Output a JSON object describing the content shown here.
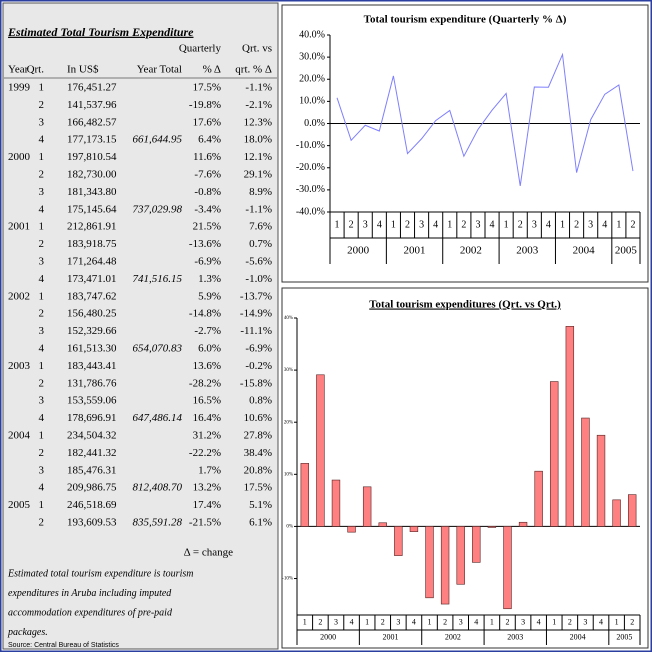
{
  "table": {
    "title": "Estimated Total Tourism Expenditure",
    "header_rows": [
      [
        null,
        null,
        null,
        null,
        "Quarterly",
        "Qrt. vs"
      ],
      [
        "Year",
        "Qrt.",
        "In US$",
        "Year Total",
        "% Δ",
        "qrt. % Δ"
      ]
    ],
    "rows": [
      [
        "1999",
        "1",
        "176,451.27",
        null,
        "17.5%",
        "-1.1%"
      ],
      [
        null,
        "2",
        "141,537.96",
        null,
        "-19.8%",
        "-2.1%"
      ],
      [
        null,
        "3",
        "166,482.57",
        null,
        "17.6%",
        "12.3%"
      ],
      [
        null,
        "4",
        "177,173.15",
        "661,644.95",
        "6.4%",
        "18.0%"
      ],
      [
        "2000",
        "1",
        "197,810.54",
        null,
        "11.6%",
        "12.1%"
      ],
      [
        null,
        "2",
        "182,730.00",
        null,
        "-7.6%",
        "29.1%"
      ],
      [
        null,
        "3",
        "181,343.80",
        null,
        "-0.8%",
        "8.9%"
      ],
      [
        null,
        "4",
        "175,145.64",
        "737,029.98",
        "-3.4%",
        "-1.1%"
      ],
      [
        "2001",
        "1",
        "212,861.91",
        null,
        "21.5%",
        "7.6%"
      ],
      [
        null,
        "2",
        "183,918.75",
        null,
        "-13.6%",
        "0.7%"
      ],
      [
        null,
        "3",
        "171,264.48",
        null,
        "-6.9%",
        "-5.6%"
      ],
      [
        null,
        "4",
        "173,471.01",
        "741,516.15",
        "1.3%",
        "-1.0%"
      ],
      [
        "2002",
        "1",
        "183,747.62",
        null,
        "5.9%",
        "-13.7%"
      ],
      [
        null,
        "2",
        "156,480.25",
        null,
        "-14.8%",
        "-14.9%"
      ],
      [
        null,
        "3",
        "152,329.66",
        null,
        "-2.7%",
        "-11.1%"
      ],
      [
        null,
        "4",
        "161,513.30",
        "654,070.83",
        "6.0%",
        "-6.9%"
      ],
      [
        "2003",
        "1",
        "183,443.41",
        null,
        "13.6%",
        "-0.2%"
      ],
      [
        null,
        "2",
        "131,786.76",
        null,
        "-28.2%",
        "-15.8%"
      ],
      [
        null,
        "3",
        "153,559.06",
        null,
        "16.5%",
        "0.8%"
      ],
      [
        null,
        "4",
        "178,696.91",
        "647,486.14",
        "16.4%",
        "10.6%"
      ],
      [
        "2004",
        "1",
        "234,504.32",
        null,
        "31.2%",
        "27.8%"
      ],
      [
        null,
        "2",
        "182,441.32",
        null,
        "-22.2%",
        "38.4%"
      ],
      [
        null,
        "3",
        "185,476.31",
        null,
        "1.7%",
        "20.8%"
      ],
      [
        null,
        "4",
        "209,986.75",
        "812,408.70",
        "13.2%",
        "17.5%"
      ],
      [
        "2005",
        "1",
        "246,518.69",
        null,
        "17.4%",
        "5.1%"
      ],
      [
        null,
        "2",
        "193,609.53",
        "835,591.28",
        "-21.5%",
        "6.1%"
      ]
    ],
    "legend": "Δ = change",
    "note_lines": [
      "Estimated total tourism expenditure is tourism",
      "expenditures in Aruba including imputed",
      "accommodation expenditures of pre-paid",
      "packages."
    ],
    "source": "Source: Central Bureau of Statistics"
  },
  "chart_data": [
    {
      "type": "line",
      "title": "Total tourism expenditure (Quarterly % Δ)",
      "color": "#7f7fff",
      "groups": [
        {
          "label": "2000",
          "categories": [
            "1",
            "2",
            "3",
            "4"
          ]
        },
        {
          "label": "2001",
          "categories": [
            "1",
            "2",
            "3",
            "4"
          ]
        },
        {
          "label": "2002",
          "categories": [
            "1",
            "2",
            "3",
            "4"
          ]
        },
        {
          "label": "2003",
          "categories": [
            "1",
            "2",
            "3",
            "4"
          ]
        },
        {
          "label": "2004",
          "categories": [
            "1",
            "2",
            "3",
            "4"
          ]
        },
        {
          "label": "2005",
          "categories": [
            "1",
            "2"
          ]
        }
      ],
      "values": [
        11.6,
        -7.6,
        -0.8,
        -3.4,
        21.5,
        -13.6,
        -6.9,
        1.3,
        5.9,
        -14.8,
        -2.7,
        6.0,
        13.6,
        -28.2,
        16.5,
        16.4,
        31.2,
        -22.2,
        1.7,
        13.2,
        17.4,
        -21.5
      ],
      "ylim": [
        -40,
        40
      ],
      "yticks": [
        {
          "value": 40,
          "label": "40.0%"
        },
        {
          "value": 30,
          "label": "30.0%"
        },
        {
          "value": 20,
          "label": "20.0%"
        },
        {
          "value": 10,
          "label": "10.0%"
        },
        {
          "value": 0,
          "label": "0.0%"
        },
        {
          "value": -10,
          "label": "-10.0%"
        },
        {
          "value": -20,
          "label": "-20.0%"
        },
        {
          "value": -30,
          "label": "-30.0%"
        },
        {
          "value": -40,
          "label": "-40.0%"
        }
      ]
    },
    {
      "type": "bar",
      "title": "Total tourism expenditures (Qrt. vs  Qrt.)",
      "color": "#ff8080",
      "groups": [
        {
          "label": "2000",
          "categories": [
            "1",
            "2",
            "3",
            "4"
          ]
        },
        {
          "label": "2001",
          "categories": [
            "1",
            "2",
            "3",
            "4"
          ]
        },
        {
          "label": "2002",
          "categories": [
            "1",
            "2",
            "3",
            "4"
          ]
        },
        {
          "label": "2003",
          "categories": [
            "1",
            "2",
            "3",
            "4"
          ]
        },
        {
          "label": "2004",
          "categories": [
            "1",
            "2",
            "3",
            "4"
          ]
        },
        {
          "label": "2005",
          "categories": [
            "1",
            "2"
          ]
        }
      ],
      "values": [
        12.1,
        29.1,
        8.9,
        -1.1,
        7.6,
        0.7,
        -5.6,
        -1.0,
        -13.7,
        -14.9,
        -11.1,
        -6.9,
        -0.2,
        -15.8,
        0.8,
        10.6,
        27.8,
        38.4,
        20.8,
        17.5,
        5.1,
        6.1
      ],
      "ylim": [
        -17,
        40
      ],
      "yticks": [
        {
          "value": 40,
          "label": "40%"
        },
        {
          "value": 30,
          "label": "30%"
        },
        {
          "value": 20,
          "label": "20%"
        },
        {
          "value": 10,
          "label": "10%"
        },
        {
          "value": 0,
          "label": "0%"
        },
        {
          "value": -10,
          "label": "-10%"
        }
      ]
    }
  ]
}
